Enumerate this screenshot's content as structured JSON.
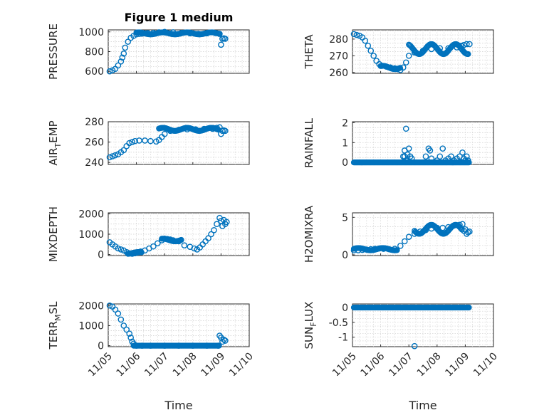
{
  "figure": {
    "title": "Figure 1 medium",
    "marker_color": "#0072bd",
    "x_tick_labels": [
      "11/05",
      "11/06",
      "11/07",
      "11/08",
      "11/09",
      "11/10"
    ],
    "x_label": "Time"
  },
  "chart_data": [
    {
      "type": "scatter",
      "id": "pressure",
      "ylabel": "PRESSURE",
      "xlim": [
        0,
        5
      ],
      "ylim": [
        580,
        1020
      ],
      "yticks": [
        600,
        800,
        1000
      ],
      "ytick_labels": [
        "600",
        "800",
        "1000"
      ],
      "x": [
        0.05,
        0.15,
        0.25,
        0.35,
        0.45,
        0.5,
        0.55,
        0.6,
        0.7,
        0.8,
        0.9,
        1.0,
        1.1,
        1.2,
        1.3,
        1.4,
        1.6,
        1.8,
        2.0,
        2.3,
        2.6,
        2.9,
        3.2,
        3.5,
        3.8,
        3.95,
        4.0,
        4.05,
        4.1,
        4.15
      ],
      "y": [
        600,
        610,
        625,
        660,
        700,
        740,
        780,
        840,
        900,
        940,
        960,
        975,
        980,
        982,
        985,
        988,
        990,
        995,
        1000,
        995,
        990,
        985,
        980,
        985,
        988,
        980,
        870,
        930,
        935,
        930
      ],
      "series": [
        {
          "type": "dense_band",
          "segments": [
            [
              1.0,
              3.95,
              975,
              995
            ]
          ]
        }
      ]
    },
    {
      "type": "scatter",
      "id": "theta",
      "ylabel": "THETA",
      "xlim": [
        0,
        5
      ],
      "ylim": [
        259.5,
        285.5
      ],
      "yticks": [
        260,
        270,
        280
      ],
      "ytick_labels": [
        "260",
        "270",
        "280"
      ],
      "x": [
        0.05,
        0.15,
        0.25,
        0.35,
        0.45,
        0.55,
        0.65,
        0.75,
        0.85,
        0.95,
        1.05,
        1.2,
        1.35,
        1.5,
        1.6,
        1.7,
        1.8,
        1.9,
        2.0,
        2.2,
        2.5,
        2.8,
        3.1,
        3.4,
        3.7,
        3.85,
        3.95,
        4.05,
        4.15
      ],
      "y": [
        283,
        282.5,
        282,
        281,
        279,
        276,
        273,
        270,
        267,
        265,
        264,
        263.5,
        263,
        262.5,
        262,
        261.5,
        263,
        266,
        270,
        272,
        273,
        274,
        274.5,
        274.5,
        275,
        276,
        276.5,
        277,
        277
      ],
      "series": [
        {
          "type": "dense_band",
          "segments": [
            [
              1.0,
              1.7,
              262,
              264
            ],
            [
              2.0,
              4.1,
              271,
              277
            ]
          ]
        }
      ]
    },
    {
      "type": "scatter",
      "id": "air_temp",
      "ylabel_main": "AIR",
      "ylabel_sub": "T",
      "ylabel_tail": "EMP",
      "xlim": [
        0,
        5
      ],
      "ylim": [
        238,
        280
      ],
      "yticks": [
        240,
        260,
        280
      ],
      "ytick_labels": [
        "240",
        "260",
        "280"
      ],
      "x": [
        0.05,
        0.15,
        0.25,
        0.35,
        0.45,
        0.55,
        0.65,
        0.75,
        0.85,
        0.95,
        1.1,
        1.3,
        1.5,
        1.7,
        1.8,
        1.9,
        2.0,
        2.2,
        2.5,
        2.8,
        3.1,
        3.4,
        3.7,
        3.85,
        3.95,
        4.0,
        4.05,
        4.1,
        4.15
      ],
      "y": [
        245,
        246,
        247,
        248,
        250,
        252,
        256,
        259,
        260,
        261,
        261.5,
        261.5,
        261,
        260.5,
        262,
        265,
        268,
        271,
        272,
        272.5,
        272.5,
        273,
        273,
        274,
        274.5,
        268,
        271,
        271.5,
        271
      ],
      "series": [
        {
          "type": "dense_band",
          "segments": [
            [
              1.8,
              3.9,
              271,
              274
            ]
          ]
        }
      ]
    },
    {
      "type": "scatter",
      "id": "rainfall",
      "ylabel": "RAINFALL",
      "xlim": [
        0,
        5
      ],
      "ylim": [
        -0.1,
        2.05
      ],
      "yticks": [
        0,
        1,
        2
      ],
      "ytick_labels": [
        "0",
        "1",
        "2"
      ],
      "x": [
        1.8,
        1.85,
        1.9,
        1.95,
        2.0,
        2.05,
        1.85,
        1.9,
        2.1,
        2.6,
        2.7,
        2.75,
        2.8,
        3.0,
        3.1,
        3.2,
        3.5,
        3.6,
        3.7,
        3.8,
        3.9,
        3.95,
        4.0,
        4.05,
        4.1,
        3.3,
        3.4
      ],
      "y": [
        0.3,
        0.6,
        1.7,
        0.4,
        0.7,
        0.3,
        0.3,
        0.1,
        0.2,
        0.3,
        0.7,
        0.6,
        0.2,
        0.1,
        0.3,
        0.7,
        0.3,
        0.1,
        0.2,
        0.3,
        0.5,
        0.2,
        0.1,
        0.3,
        0.1,
        0.1,
        0.2
      ],
      "series": [
        {
          "type": "dense_band",
          "segments": [
            [
              0.05,
              4.15,
              0,
              0
            ]
          ]
        }
      ]
    },
    {
      "type": "scatter",
      "id": "mixdepth",
      "ylabel": "MIXDEPTH",
      "xlim": [
        0,
        5
      ],
      "ylim": [
        -50,
        2050
      ],
      "yticks": [
        0,
        1000,
        2000
      ],
      "ytick_labels": [
        "0",
        "1000",
        "2000"
      ],
      "x": [
        0.05,
        0.15,
        0.25,
        0.35,
        0.45,
        0.55,
        0.65,
        0.75,
        0.85,
        0.95,
        1.05,
        1.15,
        1.3,
        1.45,
        1.6,
        1.75,
        1.9,
        2.0,
        2.1,
        2.2,
        2.3,
        2.5,
        2.7,
        2.9,
        3.05,
        3.15,
        3.25,
        3.35,
        3.45,
        3.55,
        3.65,
        3.75,
        3.85,
        3.95,
        4.0,
        4.05,
        4.1,
        4.15,
        4.2
      ],
      "y": [
        600,
        500,
        400,
        300,
        250,
        200,
        120,
        60,
        40,
        60,
        100,
        150,
        200,
        300,
        400,
        550,
        700,
        780,
        760,
        740,
        700,
        650,
        450,
        380,
        300,
        250,
        350,
        500,
        650,
        800,
        1000,
        1200,
        1500,
        1800,
        1650,
        1400,
        1700,
        1500,
        1600
      ],
      "series": [
        {
          "type": "dense_band",
          "segments": [
            [
              0.7,
              1.2,
              30,
              120
            ],
            [
              1.9,
              2.6,
              650,
              780
            ]
          ]
        }
      ]
    },
    {
      "type": "scatter",
      "id": "h2omixra",
      "ylabel": "H2OMIXRA",
      "xlim": [
        0,
        5
      ],
      "ylim": [
        -0.1,
        5.6
      ],
      "yticks": [
        0,
        5
      ],
      "ytick_labels": [
        "0",
        "5"
      ],
      "x": [
        0.05,
        0.2,
        0.35,
        0.5,
        0.65,
        0.8,
        0.95,
        1.1,
        1.3,
        1.5,
        1.7,
        1.85,
        2.0,
        2.2,
        2.4,
        2.6,
        2.8,
        3.0,
        3.2,
        3.4,
        3.6,
        3.8,
        3.9,
        3.95,
        4.0,
        4.05,
        4.1,
        4.15
      ],
      "y": [
        0.6,
        0.6,
        0.65,
        0.7,
        0.75,
        0.8,
        0.85,
        0.8,
        0.75,
        0.8,
        1.2,
        1.8,
        2.4,
        2.8,
        3.1,
        3.3,
        3.5,
        3.6,
        3.6,
        3.7,
        3.9,
        4.0,
        4.1,
        3.2,
        3.4,
        2.8,
        3.0,
        3.1
      ],
      "series": [
        {
          "type": "dense_band",
          "segments": [
            [
              0.05,
              1.6,
              0.6,
              0.9
            ],
            [
              2.2,
              3.9,
              2.8,
              4.0
            ]
          ]
        }
      ]
    },
    {
      "type": "scatter",
      "id": "terr_msl",
      "ylabel_main": "TERR",
      "ylabel_sub": "M",
      "ylabel_tail": "SL",
      "xlim": [
        0,
        5
      ],
      "ylim": [
        -50,
        2080
      ],
      "yticks": [
        0,
        1000,
        2000
      ],
      "ytick_labels": [
        "0",
        "1000",
        "2000"
      ],
      "x": [
        0.05,
        0.15,
        0.25,
        0.35,
        0.45,
        0.55,
        0.65,
        0.75,
        0.8,
        0.85,
        0.9,
        1.0,
        1.2,
        1.5,
        2.0,
        2.5,
        3.0,
        3.5,
        3.9,
        3.95,
        4.0,
        4.05,
        4.1,
        4.15
      ],
      "y": [
        2000,
        1950,
        1800,
        1600,
        1300,
        1000,
        800,
        600,
        400,
        200,
        100,
        0,
        0,
        0,
        0,
        0,
        0,
        0,
        0,
        500,
        400,
        200,
        300,
        250
      ],
      "series": [
        {
          "type": "dense_band",
          "segments": [
            [
              0.9,
              3.95,
              0,
              0
            ]
          ]
        }
      ]
    },
    {
      "type": "scatter",
      "id": "sun_flux",
      "ylabel_main": "SUN",
      "ylabel_sub": "F",
      "ylabel_tail": "LUX",
      "xlim": [
        0,
        5
      ],
      "ylim": [
        -1.32,
        0.12
      ],
      "yticks": [
        0,
        -0.5,
        -1
      ],
      "ytick_labels": [
        "0",
        "-0.5",
        "-1"
      ],
      "x": [
        2.2
      ],
      "y": [
        -1.3
      ],
      "series": [
        {
          "type": "dense_band",
          "segments": [
            [
              0.05,
              4.15,
              0,
              0
            ]
          ]
        }
      ]
    }
  ]
}
